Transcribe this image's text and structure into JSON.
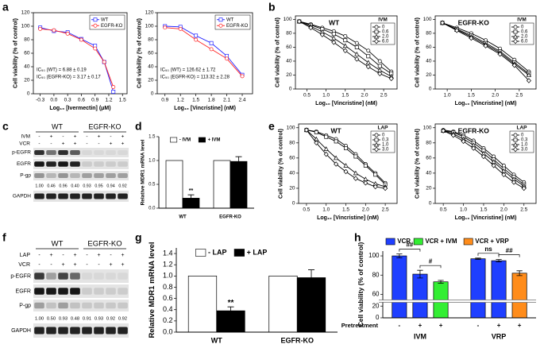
{
  "panel_letters": [
    "a",
    "b",
    "c",
    "d",
    "e",
    "f",
    "g",
    "h"
  ],
  "chart_data": [
    {
      "type": "line",
      "xlabel": "Log₁₀ [Ivermectin] (μM)",
      "ylabel": "Cell viability (% of control)",
      "x": [
        -0.3,
        0,
        0.3,
        0.6,
        0.9,
        1.1,
        1.3
      ],
      "xlim": [
        -0.45,
        1.6
      ],
      "xticks": [
        -0.3,
        {
          "value": 0,
          "label": "0.0"
        },
        0.3,
        0.6,
        0.9,
        1.2,
        1.5
      ],
      "ylim": [
        0,
        120
      ],
      "yticks": [
        0,
        20,
        40,
        60,
        80,
        100,
        120
      ],
      "legend": "upper right",
      "series": [
        {
          "name": "WT",
          "color": "#1f1fff",
          "marker": "square",
          "values": [
            98,
            93,
            91,
            81,
            71,
            47,
            3
          ]
        },
        {
          "name": "EGFR-KO",
          "color": "#ff2020",
          "marker": "circle",
          "values": [
            96,
            94,
            89,
            80,
            67,
            47,
            10
          ]
        }
      ],
      "annotations": [
        {
          "text": "IC₅₀ (WT) = 6.88 ± 0.19",
          "color": "#1f1fff"
        },
        {
          "text": "IC₅₀ (EGFR-KO) = 3.17 ± 0.17",
          "color": "#ff2020"
        }
      ]
    },
    {
      "type": "line",
      "xlabel": "Log₁₀ [Vincristine] (nM)",
      "ylabel": "Cell viability (% of control)",
      "x": [
        0.9,
        1.2,
        1.5,
        1.8,
        2.1,
        2.4
      ],
      "xlim": [
        0.75,
        2.6
      ],
      "xticks": [
        0.9,
        1.2,
        1.5,
        1.8,
        2.1,
        2.4
      ],
      "ylim": [
        0,
        120
      ],
      "yticks": [
        0,
        20,
        40,
        60,
        80,
        100,
        120
      ],
      "legend": "upper right",
      "series": [
        {
          "name": "WT",
          "color": "#1f1fff",
          "marker": "square",
          "values": [
            100,
            99,
            86,
            75,
            56,
            28
          ]
        },
        {
          "name": "EGFR-KO",
          "color": "#ff2020",
          "marker": "circle",
          "values": [
            98,
            96,
            80,
            66,
            52,
            26
          ]
        }
      ],
      "annotations": [
        {
          "text": "IC₅₀ (WT) = 126.62 ± 1.72",
          "color": "#1f1fff"
        },
        {
          "text": "IC₅₀ (EGFR-KO) = 113.32 ± 2.28",
          "color": "#ff2020"
        }
      ]
    },
    {
      "type": "line",
      "title": "WT",
      "xlabel": "Log₁₀ [Vincristine] (nM)",
      "ylabel": "Cell viability (% of control)",
      "x": [
        0.3,
        0.6,
        0.9,
        1.2,
        1.5,
        1.8,
        2.1,
        2.4,
        2.7
      ],
      "xlim": [
        0.2,
        2.85
      ],
      "xticks": [
        0.5,
        {
          "value": 1,
          "label": "1.0"
        },
        1.5,
        {
          "value": 2,
          "label": "2.0"
        },
        2.5
      ],
      "ylim": [
        0,
        105
      ],
      "yticks": [
        0,
        20,
        40,
        60,
        80,
        100
      ],
      "legend": "upper right",
      "legend_title": "IVM",
      "series": [
        {
          "name": "0",
          "color": "#000000",
          "marker": "circle",
          "values": [
            97,
            93,
            88,
            83,
            76,
            66,
            55,
            40,
            25
          ]
        },
        {
          "name": "0.6",
          "color": "#000000",
          "marker": "square",
          "values": [
            97,
            92,
            86,
            79,
            70,
            60,
            47,
            33,
            22
          ]
        },
        {
          "name": "2.0",
          "color": "#000000",
          "marker": "triangle",
          "values": [
            97,
            90,
            82,
            73,
            62,
            50,
            38,
            27,
            18
          ]
        },
        {
          "name": "6.0",
          "color": "#000000",
          "marker": "diamond",
          "values": [
            97,
            88,
            78,
            67,
            55,
            43,
            32,
            22,
            15
          ]
        }
      ]
    },
    {
      "type": "line",
      "title": "EGFR-KO",
      "xlabel": "Log₁₀ [Vincristine] (nM)",
      "ylabel": "Cell viability (% of control)",
      "x": [
        0.9,
        1.2,
        1.5,
        1.8,
        2.1,
        2.4,
        2.7
      ],
      "xlim": [
        0.75,
        2.85
      ],
      "xticks": [
        {
          "value": 1,
          "label": "1.0"
        },
        1.5,
        {
          "value": 2,
          "label": "2.0"
        },
        2.5
      ],
      "ylim": [
        0,
        105
      ],
      "yticks": [
        0,
        20,
        40,
        60,
        80,
        100
      ],
      "legend": "upper right",
      "legend_title": "IVM",
      "series": [
        {
          "name": "0",
          "color": "#000000",
          "marker": "circle",
          "values": [
            95,
            88,
            80,
            70,
            58,
            42,
            25
          ]
        },
        {
          "name": "0.6",
          "color": "#000000",
          "marker": "square",
          "values": [
            95,
            86,
            77,
            66,
            54,
            38,
            22
          ]
        },
        {
          "name": "2.0",
          "color": "#000000",
          "marker": "triangle",
          "values": [
            95,
            85,
            75,
            64,
            52,
            36,
            20
          ]
        },
        {
          "name": "6.0",
          "color": "#000000",
          "marker": "diamond",
          "values": [
            95,
            84,
            73,
            62,
            50,
            34,
            12
          ]
        }
      ]
    },
    {
      "type": "bar",
      "ylabel": "Relative MDR1 mRNA level",
      "categories": [
        "WT",
        "EGFR-KO"
      ],
      "ylim": [
        0,
        1.5
      ],
      "yticks": [
        {
          "value": 0,
          "label": "0.0"
        },
        0.5,
        {
          "value": 1,
          "label": "1.0"
        },
        1.5
      ],
      "legend": "top",
      "series": [
        {
          "name": "- IVM",
          "color": "#ffffff",
          "values": [
            1,
            1
          ]
        },
        {
          "name": "+ IVM",
          "color": "#000000",
          "values": [
            0.21,
            0.98
          ],
          "errors": [
            0.07,
            0.1
          ]
        }
      ],
      "annotations": [
        {
          "text": "**"
        }
      ]
    },
    {
      "type": "line",
      "title": "WT",
      "xlabel": "Log₁₀ [Vincristine] (nM)",
      "ylabel": "Cell viability (% of control)",
      "x": [
        0.5,
        0.75,
        1.0,
        1.25,
        1.5,
        1.75,
        2.0,
        2.25,
        2.5
      ],
      "xlim": [
        0.3,
        2.8
      ],
      "xticks": [
        0.5,
        {
          "value": 1,
          "label": "1.0"
        },
        1.5,
        {
          "value": 2,
          "label": "2.0"
        },
        2.5
      ],
      "ylim": [
        0,
        105
      ],
      "yticks": [
        0,
        20,
        40,
        60,
        80,
        100
      ],
      "legend": "upper right",
      "legend_title": "LAP",
      "series": [
        {
          "name": "0",
          "color": "#000000",
          "marker": "circle",
          "values": [
            97,
            95,
            90,
            85,
            76,
            65,
            52,
            40,
            27
          ]
        },
        {
          "name": "0.3",
          "color": "#000000",
          "marker": "square",
          "values": [
            97,
            94,
            88,
            82,
            73,
            62,
            50,
            38,
            25
          ]
        },
        {
          "name": "1.0",
          "color": "#000000",
          "marker": "triangle",
          "values": [
            97,
            85,
            72,
            60,
            50,
            40,
            32,
            26,
            22
          ]
        },
        {
          "name": "3.0",
          "color": "#000000",
          "marker": "diamond",
          "values": [
            97,
            80,
            65,
            52,
            42,
            33,
            27,
            22,
            20
          ]
        }
      ]
    },
    {
      "type": "line",
      "title": "EGFR-KO",
      "xlabel": "Log₁₀ [Vincristine] (nM)",
      "ylabel": "Cell viability (% of control)",
      "x": [
        0.5,
        0.75,
        1.0,
        1.25,
        1.5,
        1.75,
        2.0,
        2.25,
        2.5
      ],
      "xlim": [
        0.3,
        2.8
      ],
      "xticks": [
        0.5,
        {
          "value": 1,
          "label": "1.0"
        },
        1.5,
        {
          "value": 2,
          "label": "2.0"
        },
        2.5
      ],
      "ylim": [
        0,
        105
      ],
      "yticks": [
        0,
        20,
        40,
        60,
        80,
        100
      ],
      "legend": "upper right",
      "legend_title": "LAP",
      "series": [
        {
          "name": "0",
          "color": "#000000",
          "marker": "circle",
          "values": [
            97,
            95,
            90,
            83,
            73,
            62,
            50,
            38,
            28
          ]
        },
        {
          "name": "0.3",
          "color": "#000000",
          "marker": "square",
          "values": [
            96,
            94,
            88,
            80,
            70,
            58,
            46,
            35,
            25
          ]
        },
        {
          "name": "1.0",
          "color": "#000000",
          "marker": "triangle",
          "values": [
            96,
            92,
            85,
            77,
            66,
            55,
            43,
            32,
            23
          ]
        },
        {
          "name": "3.0",
          "color": "#000000",
          "marker": "diamond",
          "values": [
            96,
            90,
            82,
            73,
            62,
            50,
            38,
            28,
            20
          ]
        }
      ]
    },
    {
      "type": "bar",
      "ylabel": "Relative MDR1 mRNA level",
      "categories": [
        "WT",
        "EGFR-KO"
      ],
      "ylim": [
        0,
        1.5
      ],
      "yticks": [
        {
          "value": 0,
          "label": "0.0"
        },
        0.2,
        0.4,
        0.6,
        0.8,
        {
          "value": 1,
          "label": "1.0"
        },
        1.2,
        1.4
      ],
      "legend": "top",
      "series": [
        {
          "name": "- LAP",
          "color": "#ffffff",
          "values": [
            1,
            1
          ]
        },
        {
          "name": "+ LAP",
          "color": "#000000",
          "values": [
            0.38,
            0.97
          ],
          "errors": [
            0.07,
            0.14
          ]
        }
      ],
      "annotations": [
        {
          "text": "**"
        }
      ]
    },
    {
      "type": "bar",
      "ylabel": "Cell viability (% of control)",
      "xlabel": "Pretreatment",
      "categories": [
        "-",
        "+",
        "+",
        "-",
        "+",
        "+"
      ],
      "groups": [
        "IVM",
        "VRP"
      ],
      "ylim": [
        0,
        105
      ],
      "axis_break": [
        25,
        55
      ],
      "yticks": [
        0,
        20,
        60,
        80,
        100
      ],
      "legend": "top",
      "series": [
        {
          "name": "VCR",
          "color": "#1f3fff",
          "values": [
            100,
            81,
            null,
            97,
            95,
            null
          ],
          "errors": [
            2,
            4,
            null,
            0.7,
            1.2,
            null
          ]
        },
        {
          "name": "VCR + IVM",
          "color": "#33ee33",
          "values": [
            null,
            null,
            73,
            null,
            null,
            null
          ],
          "errors": [
            null,
            null,
            1.5,
            null,
            null,
            null
          ]
        },
        {
          "name": "VCR + VRP",
          "color": "#ff8c1a",
          "values": [
            null,
            null,
            null,
            null,
            null,
            82
          ],
          "errors": [
            null,
            null,
            null,
            null,
            null,
            2.5
          ]
        }
      ],
      "annotations": [
        {
          "text": "##"
        },
        {
          "text": "#"
        },
        {
          "text": "ns"
        },
        {
          "text": "##"
        }
      ]
    }
  ],
  "blots": [
    {
      "groups": [
        "WT",
        "EGFR-KO"
      ],
      "treatments": [
        {
          "name": "IVM",
          "signs": [
            "-",
            "+",
            "-",
            "+",
            "-",
            "+",
            "-",
            "+"
          ]
        },
        {
          "name": "VCR",
          "signs": [
            "-",
            "-",
            "+",
            "+",
            "-",
            "-",
            "+",
            "+"
          ]
        }
      ],
      "bands": [
        "p-EGFR",
        "EGFR",
        "P-gp"
      ],
      "quantification": [
        "1.00",
        "0.46",
        "0.96",
        "0.40",
        "0.93",
        "0.95",
        "0.94",
        "0.92"
      ],
      "loading": "GAPDH"
    },
    {
      "groups": [
        "WT",
        "EGFR-KO"
      ],
      "treatments": [
        {
          "name": "LAP",
          "signs": [
            "-",
            "+",
            "-",
            "+",
            "-",
            "+",
            "-",
            "+"
          ]
        },
        {
          "name": "VCR",
          "signs": [
            "-",
            "-",
            "+",
            "+",
            "-",
            "-",
            "+",
            "+"
          ]
        }
      ],
      "bands": [
        "p-EGFR",
        "EGFR",
        "P-gp"
      ],
      "quantification": [
        "1.00",
        "0.50",
        "0.93",
        "0.48",
        "0.91",
        "0.93",
        "0.92",
        "0.92"
      ],
      "loading": "GAPDH"
    }
  ]
}
